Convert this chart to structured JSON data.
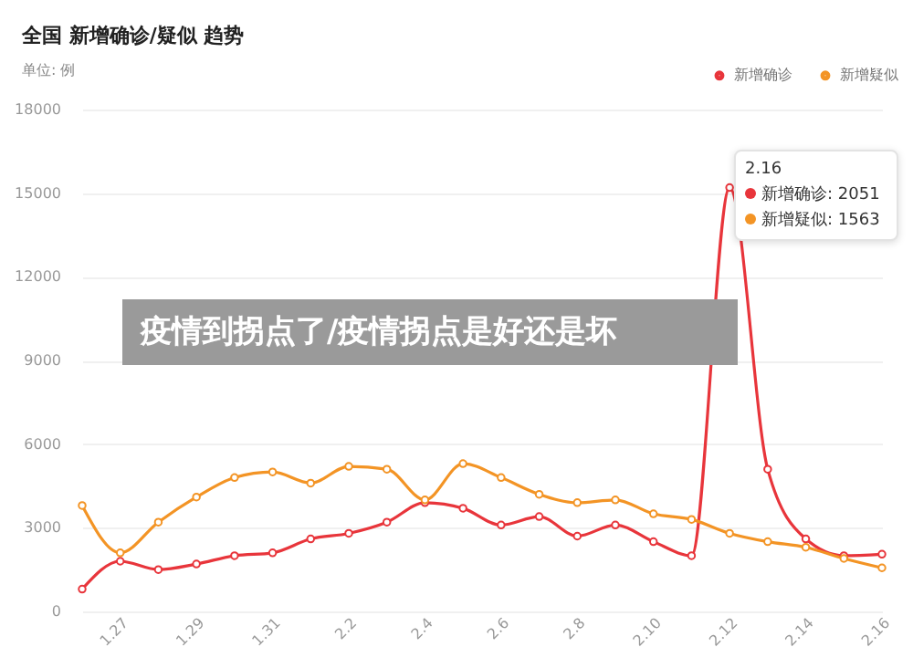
{
  "chart_data": {
    "type": "line",
    "title": "全国 新增确诊/疑似 趋势",
    "subtitle": "单位: 例",
    "categories": [
      null,
      "1.27",
      null,
      "1.29",
      null,
      "1.31",
      null,
      "2.2",
      null,
      "2.4",
      null,
      "2.6",
      null,
      "2.8",
      null,
      "2.10",
      null,
      "2.12",
      null,
      "2.14",
      null,
      "2.16"
    ],
    "series": [
      {
        "name": "新增确诊",
        "color": "#e8353b",
        "values": [
          800,
          1800,
          1500,
          1700,
          2000,
          2100,
          2600,
          2800,
          3200,
          3900,
          3700,
          3100,
          3400,
          2700,
          3100,
          2500,
          2000,
          15200,
          5100,
          2600,
          2000,
          2051
        ]
      },
      {
        "name": "新增疑似",
        "color": "#f39425",
        "values": [
          3800,
          2100,
          3200,
          4100,
          4800,
          5000,
          4600,
          5200,
          5100,
          4000,
          5300,
          4800,
          4200,
          3900,
          4000,
          3500,
          3300,
          2800,
          2500,
          2300,
          1900,
          1563
        ]
      }
    ],
    "ylim": [
      0,
      18000
    ],
    "yticks": [
      0,
      3000,
      6000,
      9000,
      12000,
      15000,
      18000
    ],
    "grid": "y",
    "legend": "top right",
    "marker": "circle",
    "line_style": "solid",
    "annotations": [
      "疫情到拐点了/疫情拐点是好还是坏",
      "2.16",
      "新增确诊: 2051",
      "新增疑似: 1563"
    ]
  }
}
